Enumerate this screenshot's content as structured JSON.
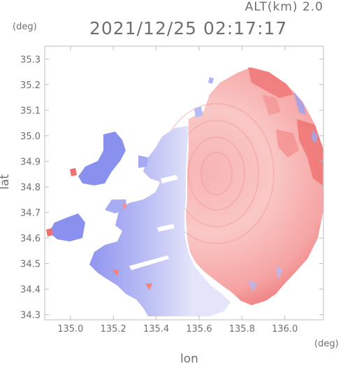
{
  "header": {
    "altitude": "ALT(km) 2.0",
    "timestamp": "2021/12/25 02:17:17"
  },
  "axes": {
    "y_unit": "(deg)",
    "x_unit": "(deg)",
    "xlabel": "lon",
    "ylabel": "lat"
  },
  "chart_data": {
    "type": "heatmap",
    "xlim": [
      134.88,
      136.18
    ],
    "ylim": [
      34.28,
      35.35
    ],
    "x_ticks": [
      "135.0",
      "135.2",
      "135.4",
      "135.6",
      "135.8",
      "136.0"
    ],
    "x_tick_values": [
      135.0,
      135.2,
      135.4,
      135.6,
      135.8,
      136.0
    ],
    "y_ticks": [
      "34.3",
      "34.4",
      "34.5",
      "34.6",
      "34.7",
      "34.8",
      "34.9",
      "35.0",
      "35.1",
      "35.2",
      "35.3"
    ],
    "y_tick_values": [
      34.3,
      34.4,
      34.5,
      34.6,
      34.7,
      34.8,
      34.9,
      35.0,
      35.1,
      35.2,
      35.3
    ],
    "colors": {
      "approaching": "#7b82f0",
      "receding": "#f07070",
      "zero": "#ffffff"
    }
  }
}
